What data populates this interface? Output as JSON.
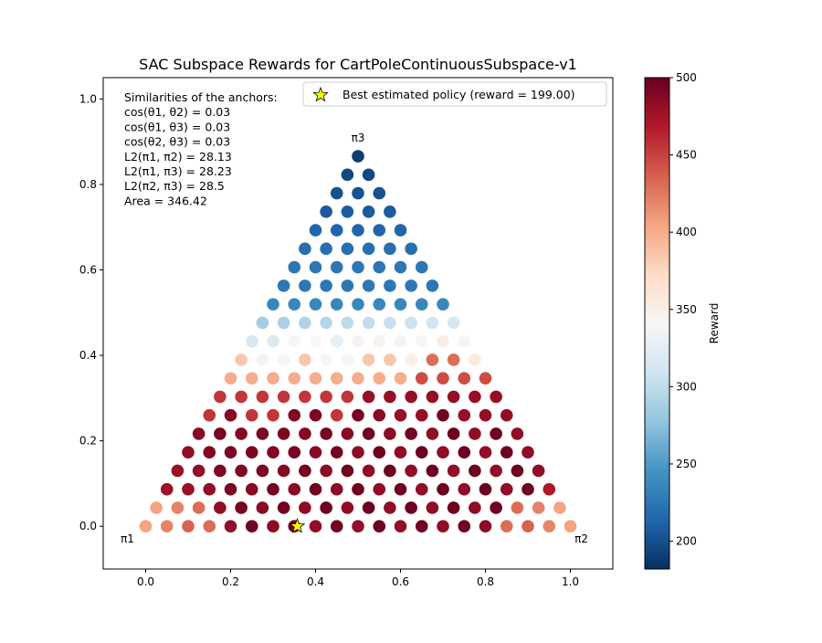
{
  "chart_data": {
    "type": "scatter",
    "title": "SAC Subspace Rewards for CartPoleContinuousSubspace-v1",
    "xlabel": "",
    "ylabel": "",
    "xlim": [
      -0.1,
      1.1
    ],
    "ylim": [
      -0.1,
      1.05
    ],
    "x_ticks": [
      0.0,
      0.2,
      0.4,
      0.6,
      0.8,
      1.0
    ],
    "x_tick_labels": [
      "0.0",
      "0.2",
      "0.4",
      "0.6",
      "0.8",
      "1.0"
    ],
    "y_ticks": [
      0.0,
      0.2,
      0.4,
      0.6,
      0.8,
      1.0
    ],
    "y_tick_labels": [
      "0.0",
      "0.2",
      "0.4",
      "0.6",
      "0.8",
      "1.0"
    ],
    "grid": false,
    "anchors": [
      {
        "label": "π1",
        "x": 0.0,
        "y": 0.0
      },
      {
        "label": "π2",
        "x": 1.0,
        "y": 0.0
      },
      {
        "label": "π3",
        "x": 0.5,
        "y": 0.866
      }
    ],
    "grid_resolution": 20,
    "reward_regions": [
      {
        "description": "near π3 (top)",
        "approx_reward_range": [
          180,
          260
        ]
      },
      {
        "description": "upper band",
        "approx_reward_range": [
          290,
          360
        ]
      },
      {
        "description": "middle band",
        "approx_reward_range": [
          380,
          470
        ]
      },
      {
        "description": "bottom region",
        "approx_reward_range": [
          470,
          500
        ]
      },
      {
        "description": "near π1 and π2 corners",
        "approx_reward_range": [
          400,
          430
        ]
      }
    ],
    "best_policy": {
      "x": 0.357,
      "y": 0.0,
      "reward": 199.0
    },
    "annotations": {
      "heading": "Similarities of the anchors:",
      "lines": [
        "cos(θ1, θ2) = 0.03",
        "cos(θ1, θ3) = 0.03",
        "cos(θ2, θ3) = 0.03",
        "L2(π1, π2) = 28.13",
        "L2(π1, π3) = 28.23",
        "L2(π2, π3) = 28.5",
        "Area = 346.42"
      ]
    },
    "legend": {
      "position": "top-right",
      "entries": [
        {
          "label": "Best estimated policy (reward = 199.00)",
          "marker": "star",
          "color": "#ffff00"
        }
      ]
    },
    "colorbar": {
      "label": "Reward",
      "min": 182,
      "max": 500,
      "ticks": [
        200,
        250,
        300,
        350,
        400,
        450,
        500
      ],
      "tick_labels": [
        "200",
        "250",
        "300",
        "350",
        "400",
        "450",
        "500"
      ],
      "colormap": "RdBu_r",
      "stops": [
        "#053061",
        "#2166ac",
        "#4393c3",
        "#92c5de",
        "#d1e5f0",
        "#f7f7f7",
        "#fddbc7",
        "#f4a582",
        "#d6604d",
        "#b2182b",
        "#67001f"
      ]
    }
  }
}
